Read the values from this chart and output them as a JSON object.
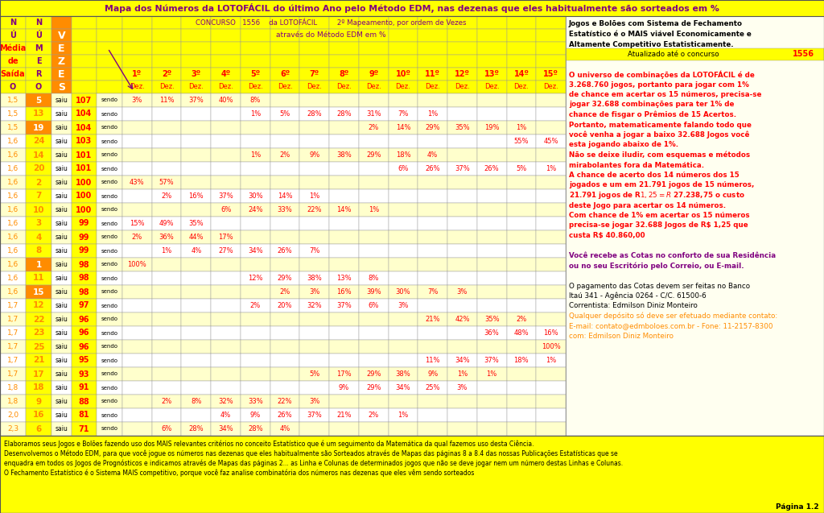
{
  "title": "Mapa dos Números da LOTOFÁCIL do último Ano pelo Método EDM, nas dezenas que eles habitualmente são sorteados em %",
  "right_panel_lines": [
    [
      "Jogos e Bolões com Sistema de Fechamento",
      "black",
      true
    ],
    [
      "Estatístico é o MAIS viável Economicamente e",
      "black",
      true
    ],
    [
      "Altamente Competitivo Estatisticamente.",
      "black",
      true
    ],
    [
      "",
      "black",
      false
    ],
    [
      "",
      "black",
      false
    ],
    [
      "O universo de combinações da LOTOFÁCIL é de",
      "red",
      true
    ],
    [
      "3.268.760 jogos, portanto para jogar com 1%",
      "red",
      true
    ],
    [
      "de chance em acertar os 15 números, precisa-se",
      "red",
      true
    ],
    [
      "jogar 32.688 combinações para ter 1% de",
      "red",
      true
    ],
    [
      "chance de fisgar o Prêmios de 15 Acertos.",
      "red",
      true
    ],
    [
      "Portanto, matematicamente falando todo que",
      "red",
      true
    ],
    [
      "você venha a jogar a baixo 32.688 Jogos você",
      "red",
      true
    ],
    [
      "esta jogando abaixo de 1%.",
      "red",
      true
    ],
    [
      "Não se deixe iludir, com esquemas e métodos",
      "red",
      true
    ],
    [
      "mirabolantes fora da Matemática.",
      "red",
      true
    ],
    [
      "A chance de acerto dos 14 números dos 15",
      "red",
      true
    ],
    [
      "jogados e um em 21.791 jogos de 15 números,",
      "red",
      true
    ],
    [
      "21.791 jogos de R$ 1,25 = R$ 27.238,75 o custo",
      "red",
      true
    ],
    [
      "deste Jogo para acertar os 14 números.",
      "red",
      true
    ],
    [
      "Com chance de 1% em acertar os 15 números",
      "red",
      true
    ],
    [
      "precisa-se jogar 32.688 Jogos de R$ 1,25 que",
      "red",
      true
    ],
    [
      "custa R$ 40.860,00",
      "red",
      true
    ],
    [
      "",
      "black",
      false
    ],
    [
      "Você recebe as Cotas no conforto de sua Residência",
      "purple",
      true
    ],
    [
      "ou no seu Escritório pelo Correio, ou E-mail.",
      "purple",
      true
    ],
    [
      "",
      "black",
      false
    ],
    [
      "O pagamento das Cotas devem ser feitas no Banco",
      "black",
      false
    ],
    [
      "Itaú 341 - Agência 0264 - C/C. 61500-6",
      "black",
      false
    ],
    [
      "Correntista: Edmilson Diniz Monteiro",
      "black",
      false
    ],
    [
      "Qualquer depósito só deve ser efetuado mediante contato:",
      "orange",
      false
    ],
    [
      "E-mail: contato@edmboloes.com.br - Fone: 11-2157-8300",
      "orange",
      false
    ],
    [
      "com: Edmilson Diniz Monteiro",
      "orange",
      false
    ]
  ],
  "footer_lines": [
    "Elaboramos seus Jogos e Bolões fazendo uso dos MAIS relevantes critérios no conceito Estatístico que é um seguimento da Matemática da qual fazemos uso desta Ciência.",
    "Desenvolvemos o Método EDM, para que você jogue os números nas dezenas que eles habitualmente são Sorteados através de Mapas das páginas 8 a 8.4 das nossas Publicações Estatísticas que se",
    "enquadra em todos os Jogos de Prognósticos e indicamos através de Mapas das páginas 2... as Linha e Colunas de determinados jogos que não se deve jogar nem um número destas Linhas e Colunas.",
    "O Fechamento Estatístico é o Sistema MAIS competitivo, porque você faz analise combinatória dos números nas dezenas que eles vêm sendo sorteados"
  ],
  "page": "Página 1.2",
  "rows": [
    {
      "media": "1,5",
      "num": "5",
      "num_hl": true,
      "vezes": "107",
      "pcts": {
        "1": "3%",
        "2": "11%",
        "3": "37%",
        "4": "40%",
        "5": "8%"
      }
    },
    {
      "media": "1,5",
      "num": "13",
      "num_hl": false,
      "vezes": "104",
      "pcts": {
        "5": "1%",
        "6": "5%",
        "7": "28%",
        "8": "28%",
        "9": "31%",
        "10": "7%",
        "11": "1%"
      }
    },
    {
      "media": "1,5",
      "num": "19",
      "num_hl": true,
      "vezes": "104",
      "pcts": {
        "9": "2%",
        "10": "14%",
        "11": "29%",
        "12": "35%",
        "13": "19%",
        "14": "1%"
      }
    },
    {
      "media": "1,6",
      "num": "24",
      "num_hl": false,
      "vezes": "103",
      "pcts": {
        "14": "55%",
        "15": "45%"
      }
    },
    {
      "media": "1,6",
      "num": "14",
      "num_hl": false,
      "vezes": "101",
      "pcts": {
        "5": "1%",
        "6": "2%",
        "7": "9%",
        "8": "38%",
        "9": "29%",
        "10": "18%",
        "11": "4%"
      }
    },
    {
      "media": "1,6",
      "num": "20",
      "num_hl": false,
      "vezes": "101",
      "pcts": {
        "10": "6%",
        "11": "26%",
        "12": "37%",
        "13": "26%",
        "14": "5%",
        "15": "1%"
      }
    },
    {
      "media": "1,6",
      "num": "2",
      "num_hl": false,
      "vezes": "100",
      "pcts": {
        "1": "43%",
        "2": "57%"
      }
    },
    {
      "media": "1,6",
      "num": "7",
      "num_hl": false,
      "vezes": "100",
      "pcts": {
        "2": "2%",
        "3": "16%",
        "4": "37%",
        "5": "30%",
        "6": "14%",
        "7": "1%"
      }
    },
    {
      "media": "1,6",
      "num": "10",
      "num_hl": false,
      "vezes": "100",
      "pcts": {
        "4": "6%",
        "5": "24%",
        "6": "33%",
        "7": "22%",
        "8": "14%",
        "9": "1%"
      }
    },
    {
      "media": "1,6",
      "num": "3",
      "num_hl": false,
      "vezes": "99",
      "pcts": {
        "1": "15%",
        "2": "49%",
        "3": "35%"
      }
    },
    {
      "media": "1,6",
      "num": "4",
      "num_hl": false,
      "vezes": "99",
      "pcts": {
        "1": "2%",
        "2": "36%",
        "3": "44%",
        "4": "17%"
      }
    },
    {
      "media": "1,6",
      "num": "8",
      "num_hl": false,
      "vezes": "99",
      "pcts": {
        "2": "1%",
        "3": "4%",
        "4": "27%",
        "5": "34%",
        "6": "26%",
        "7": "7%"
      }
    },
    {
      "media": "1,6",
      "num": "1",
      "num_hl": true,
      "vezes": "98",
      "pcts": {
        "1": "100%"
      }
    },
    {
      "media": "1,6",
      "num": "11",
      "num_hl": false,
      "vezes": "98",
      "pcts": {
        "5": "12%",
        "6": "29%",
        "7": "38%",
        "8": "13%",
        "9": "8%"
      }
    },
    {
      "media": "1,6",
      "num": "15",
      "num_hl": true,
      "vezes": "98",
      "pcts": {
        "6": "2%",
        "7": "3%",
        "8": "16%",
        "9": "39%",
        "10": "30%",
        "11": "7%",
        "12": "3%"
      }
    },
    {
      "media": "1,7",
      "num": "12",
      "num_hl": false,
      "vezes": "97",
      "pcts": {
        "5": "2%",
        "6": "20%",
        "7": "32%",
        "8": "37%",
        "9": "6%",
        "10": "3%"
      }
    },
    {
      "media": "1,7",
      "num": "22",
      "num_hl": false,
      "vezes": "96",
      "pcts": {
        "11": "21%",
        "12": "42%",
        "13": "35%",
        "14": "2%"
      }
    },
    {
      "media": "1,7",
      "num": "23",
      "num_hl": false,
      "vezes": "96",
      "pcts": {
        "13": "36%",
        "14": "48%",
        "15": "16%"
      }
    },
    {
      "media": "1,7",
      "num": "25",
      "num_hl": false,
      "vezes": "96",
      "pcts": {
        "15": "100%"
      }
    },
    {
      "media": "1,7",
      "num": "21",
      "num_hl": false,
      "vezes": "95",
      "pcts": {
        "11": "11%",
        "12": "34%",
        "13": "37%",
        "14": "18%",
        "15": "1%"
      }
    },
    {
      "media": "1,7",
      "num": "17",
      "num_hl": false,
      "vezes": "93",
      "pcts": {
        "7": "5%",
        "8": "17%",
        "9": "29%",
        "10": "38%",
        "11": "9%",
        "12": "1%",
        "13": "1%"
      }
    },
    {
      "media": "1,8",
      "num": "18",
      "num_hl": false,
      "vezes": "91",
      "pcts": {
        "8": "9%",
        "9": "29%",
        "10": "34%",
        "11": "25%",
        "12": "3%"
      }
    },
    {
      "media": "1,8",
      "num": "9",
      "num_hl": false,
      "vezes": "88",
      "pcts": {
        "2": "2%",
        "3": "8%",
        "4": "32%",
        "5": "33%",
        "6": "22%",
        "7": "3%"
      }
    },
    {
      "media": "2,0",
      "num": "16",
      "num_hl": false,
      "vezes": "81",
      "pcts": {
        "4": "4%",
        "5": "9%",
        "6": "26%",
        "7": "37%",
        "8": "21%",
        "9": "2%",
        "10": "1%"
      }
    },
    {
      "media": "2,3",
      "num": "6",
      "num_hl": false,
      "vezes": "71",
      "pcts": {
        "2": "6%",
        "3": "28%",
        "4": "34%",
        "5": "28%",
        "6": "4%"
      }
    }
  ]
}
